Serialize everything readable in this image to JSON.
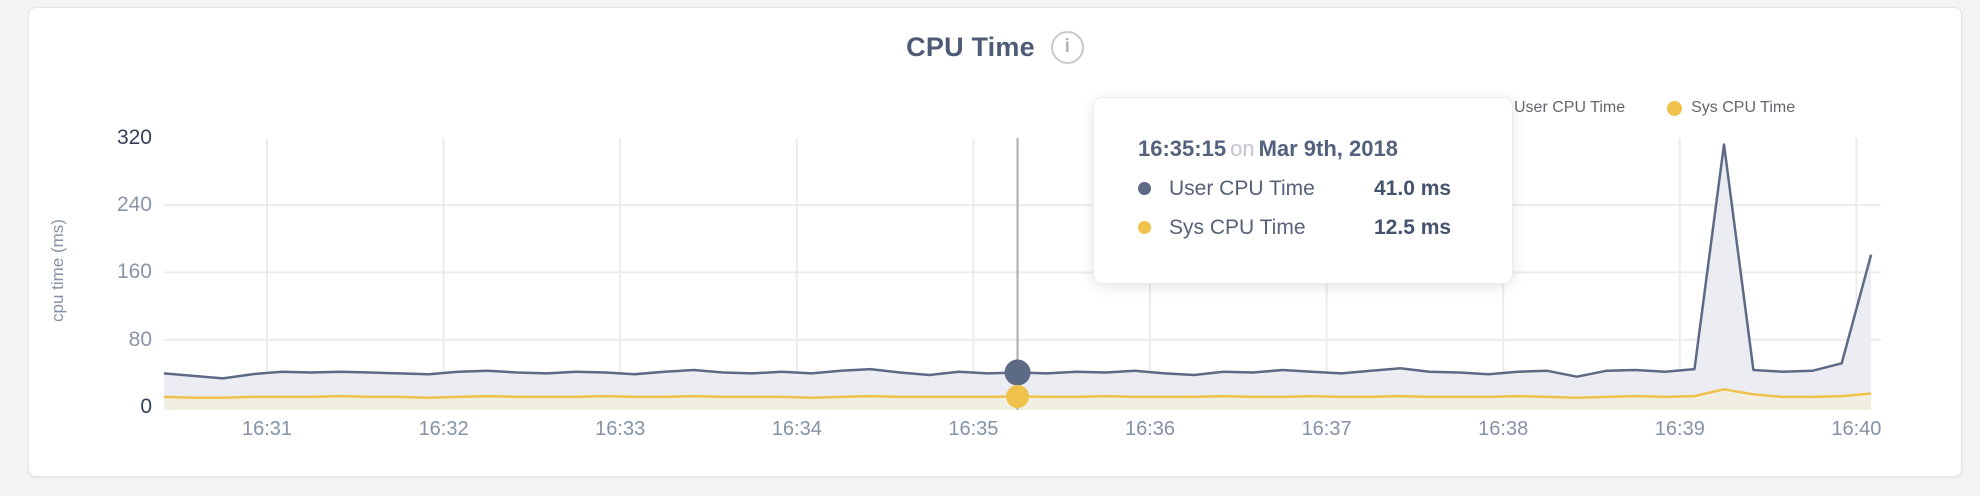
{
  "header": {
    "title": "CPU Time",
    "info_icon": "i"
  },
  "legend": {
    "items": [
      {
        "label": "User CPU Time",
        "color": "#5d6a85"
      },
      {
        "label": "Sys CPU Time",
        "color": "#f0c24b"
      }
    ]
  },
  "y_axis": {
    "label": "cpu time (ms)",
    "ticks": [
      {
        "label": "320",
        "value": 320,
        "emphasis": true
      },
      {
        "label": "240",
        "value": 240,
        "emphasis": false
      },
      {
        "label": "160",
        "value": 160,
        "emphasis": false
      },
      {
        "label": "80",
        "value": 80,
        "emphasis": false
      },
      {
        "label": "0",
        "value": 0,
        "emphasis": true
      }
    ]
  },
  "x_axis": {
    "ticks": [
      "16:31",
      "16:32",
      "16:33",
      "16:34",
      "16:35",
      "16:36",
      "16:37",
      "16:38",
      "16:39",
      "16:40"
    ]
  },
  "tooltip": {
    "time": "16:35:15",
    "conjunction": "on",
    "date": "Mar 9th, 2018",
    "rows": [
      {
        "label": "User CPU Time",
        "value": "41.0 ms",
        "color": "#5d6a85"
      },
      {
        "label": "Sys CPU Time",
        "value": "12.5 ms",
        "color": "#f0c24b"
      }
    ]
  },
  "chart_data": {
    "type": "area",
    "title": "CPU Time",
    "xlabel": "",
    "ylabel": "cpu time (ms)",
    "ylim": [
      0,
      320
    ],
    "y_ticks": [
      0,
      80,
      160,
      240,
      320
    ],
    "x_tick_labels": [
      "16:31",
      "16:32",
      "16:33",
      "16:34",
      "16:35",
      "16:36",
      "16:37",
      "16:38",
      "16:39",
      "16:40"
    ],
    "x_start_seconds": -35,
    "x_step_seconds": 10,
    "grid": true,
    "legend_position": "top-right",
    "series": [
      {
        "name": "User CPU Time",
        "color": "#5d6a85",
        "fill": "#ecedf3",
        "values": [
          40,
          37,
          34,
          39,
          42,
          41,
          42,
          41,
          40,
          39,
          42,
          43,
          41,
          40,
          42,
          41,
          39,
          42,
          44,
          41,
          40,
          42,
          40,
          43,
          45,
          41,
          38,
          42,
          40,
          41,
          40,
          42,
          41,
          43,
          40,
          38,
          42,
          41,
          44,
          42,
          40,
          43,
          46,
          42,
          41,
          39,
          42,
          43,
          36,
          43,
          44,
          42,
          45,
          312,
          44,
          42,
          43,
          52,
          181
        ]
      },
      {
        "name": "Sys CPU Time",
        "color": "#f0c24b",
        "fill": "#f1eee2",
        "values": [
          12,
          11,
          11,
          12,
          12,
          12,
          13,
          12,
          12,
          11,
          12,
          13,
          12,
          12,
          12,
          13,
          12,
          12,
          13,
          12,
          12,
          12,
          11,
          12,
          13,
          12,
          12,
          12,
          12,
          12.5,
          12,
          12,
          13,
          12,
          12,
          12,
          13,
          12,
          12,
          13,
          12,
          12,
          13,
          12,
          12,
          12,
          13,
          12,
          11,
          12,
          13,
          12,
          13,
          21,
          15,
          12,
          12,
          13,
          16
        ]
      }
    ],
    "highlight": {
      "index": 29,
      "time": "16:35:15",
      "date": "Mar 9th, 2018",
      "user_ms": 41.0,
      "sys_ms": 12.5
    }
  }
}
